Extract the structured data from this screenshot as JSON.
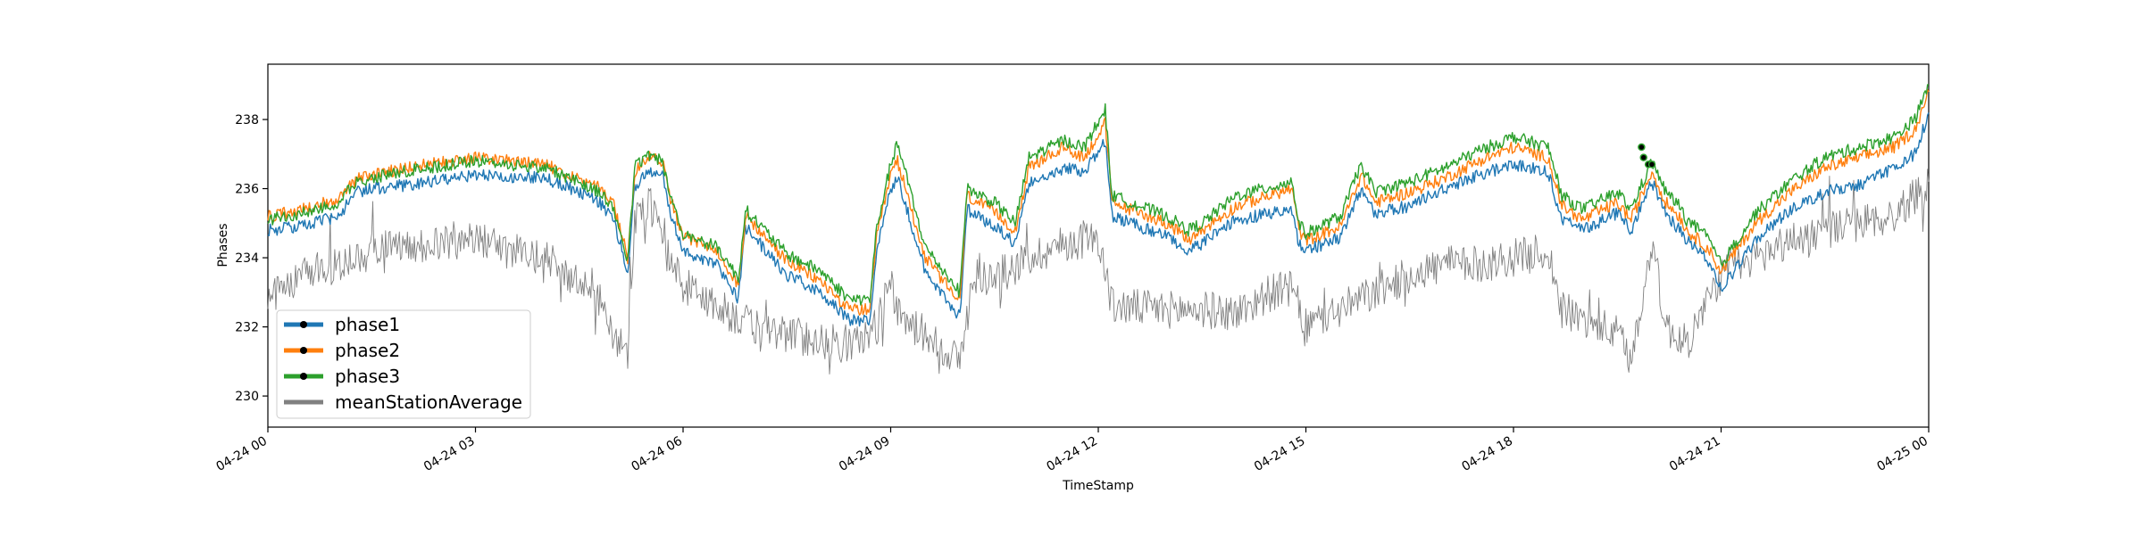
{
  "chart_data": {
    "type": "line",
    "title": "",
    "xlabel": "TimeStamp",
    "ylabel": "Phases",
    "xlim": [
      "04-24 00:00",
      "04-25 00:00"
    ],
    "ylim": [
      229.1,
      239.6
    ],
    "grid": false,
    "legend_position": "lower-left",
    "x_ticks": [
      {
        "hour": 0,
        "label": "04-24 00"
      },
      {
        "hour": 3,
        "label": "04-24 03"
      },
      {
        "hour": 6,
        "label": "04-24 06"
      },
      {
        "hour": 9,
        "label": "04-24 09"
      },
      {
        "hour": 12,
        "label": "04-24 12"
      },
      {
        "hour": 15,
        "label": "04-24 15"
      },
      {
        "hour": 18,
        "label": "04-24 18"
      },
      {
        "hour": 21,
        "label": "04-24 21"
      },
      {
        "hour": 24,
        "label": "04-25 00"
      }
    ],
    "y_ticks": [
      230,
      232,
      234,
      236,
      238
    ],
    "series": [
      {
        "name": "phase1",
        "color": "#1f77b4",
        "x": [
          0.0,
          0.5,
          1.0,
          1.3,
          1.5,
          2.0,
          3.0,
          4.0,
          4.5,
          4.8,
          5.0,
          5.2,
          5.3,
          5.5,
          5.7,
          5.8,
          6.0,
          6.5,
          6.8,
          6.9,
          7.5,
          8.0,
          8.4,
          8.7,
          8.8,
          9.0,
          9.1,
          9.5,
          10.0,
          10.1,
          10.5,
          10.8,
          11.0,
          11.5,
          11.8,
          12.1,
          12.2,
          13.0,
          13.3,
          13.5,
          14.0,
          14.8,
          14.9,
          15.0,
          15.5,
          15.8,
          16.0,
          16.5,
          17.0,
          17.5,
          18.0,
          18.5,
          18.7,
          19.0,
          19.5,
          19.7,
          20.0,
          20.2,
          20.4,
          20.5,
          20.8,
          21.0,
          21.5,
          22.0,
          22.5,
          23.0,
          23.5,
          23.8,
          24.0
        ],
        "values": [
          234.8,
          234.9,
          235.2,
          235.9,
          236.0,
          236.1,
          236.4,
          236.3,
          235.9,
          235.6,
          235.1,
          233.6,
          236.0,
          236.5,
          236.4,
          235.4,
          234.2,
          233.8,
          232.8,
          234.9,
          233.5,
          233.0,
          232.2,
          232.2,
          234.3,
          236.0,
          236.3,
          233.6,
          232.3,
          235.4,
          234.9,
          234.4,
          236.2,
          236.6,
          236.5,
          237.4,
          235.2,
          234.6,
          234.2,
          234.4,
          235.1,
          235.4,
          234.4,
          234.2,
          234.6,
          236.0,
          235.3,
          235.5,
          236.0,
          236.4,
          236.7,
          236.5,
          235.1,
          234.8,
          235.3,
          234.8,
          236.2,
          235.3,
          234.8,
          234.5,
          234.0,
          233.1,
          234.5,
          235.4,
          235.9,
          236.1,
          236.6,
          237.0,
          238.2
        ]
      },
      {
        "name": "phase2",
        "color": "#ff7f0e",
        "x": [
          0.0,
          0.5,
          1.0,
          1.3,
          1.5,
          2.0,
          3.0,
          4.0,
          4.5,
          4.8,
          5.0,
          5.2,
          5.3,
          5.5,
          5.7,
          5.8,
          6.0,
          6.5,
          6.8,
          6.9,
          7.5,
          8.0,
          8.4,
          8.7,
          8.8,
          9.0,
          9.1,
          9.5,
          10.0,
          10.1,
          10.5,
          10.8,
          11.0,
          11.5,
          11.8,
          12.1,
          12.2,
          13.0,
          13.3,
          13.5,
          14.0,
          14.8,
          14.9,
          15.0,
          15.5,
          15.8,
          16.0,
          16.5,
          17.0,
          17.5,
          18.0,
          18.5,
          18.7,
          19.0,
          19.5,
          19.7,
          20.0,
          20.2,
          20.4,
          20.5,
          20.8,
          21.0,
          21.5,
          22.0,
          22.5,
          23.0,
          23.5,
          23.8,
          24.0
        ],
        "values": [
          235.2,
          235.4,
          235.7,
          236.3,
          236.4,
          236.6,
          236.9,
          236.7,
          236.3,
          236.0,
          235.5,
          234.0,
          236.5,
          236.9,
          236.8,
          235.8,
          234.6,
          234.2,
          233.2,
          235.2,
          233.9,
          233.3,
          232.5,
          232.5,
          234.6,
          236.4,
          236.8,
          234.0,
          232.7,
          235.8,
          235.3,
          234.8,
          236.6,
          237.2,
          236.9,
          237.9,
          235.6,
          235.0,
          234.5,
          234.8,
          235.5,
          236.0,
          234.8,
          234.5,
          234.9,
          236.4,
          235.6,
          235.9,
          236.3,
          236.8,
          237.2,
          236.9,
          235.5,
          235.1,
          235.6,
          235.1,
          236.5,
          235.6,
          235.2,
          234.8,
          234.3,
          233.6,
          235.0,
          235.9,
          236.6,
          236.9,
          237.2,
          237.7,
          238.8
        ]
      },
      {
        "name": "phase3",
        "color": "#2ca02c",
        "x": [
          0.0,
          0.5,
          1.0,
          1.3,
          1.5,
          2.0,
          3.0,
          4.0,
          4.5,
          4.8,
          5.0,
          5.2,
          5.3,
          5.5,
          5.7,
          5.8,
          6.0,
          6.5,
          6.8,
          6.9,
          7.5,
          8.0,
          8.4,
          8.7,
          8.8,
          9.0,
          9.1,
          9.5,
          10.0,
          10.1,
          10.5,
          10.8,
          11.0,
          11.5,
          11.8,
          12.1,
          12.2,
          13.0,
          13.3,
          13.5,
          14.0,
          14.8,
          14.9,
          15.0,
          15.5,
          15.8,
          16.0,
          16.5,
          17.0,
          17.5,
          18.0,
          18.5,
          18.7,
          19.0,
          19.5,
          19.7,
          20.0,
          20.2,
          20.4,
          20.5,
          20.8,
          21.0,
          21.5,
          22.0,
          22.5,
          23.0,
          23.5,
          23.8,
          24.0
        ],
        "values": [
          235.1,
          235.3,
          235.6,
          236.2,
          236.3,
          236.5,
          236.8,
          236.6,
          236.2,
          235.9,
          235.4,
          233.9,
          236.6,
          237.0,
          236.8,
          235.9,
          234.7,
          234.3,
          233.4,
          235.4,
          234.1,
          233.6,
          232.8,
          232.8,
          234.9,
          236.7,
          237.3,
          234.3,
          233.0,
          236.0,
          235.6,
          235.0,
          236.9,
          237.4,
          237.2,
          238.3,
          235.8,
          235.2,
          234.8,
          235.0,
          235.8,
          236.2,
          235.0,
          234.7,
          235.2,
          236.7,
          235.9,
          236.2,
          236.6,
          237.1,
          237.5,
          237.2,
          235.8,
          235.4,
          235.9,
          235.4,
          236.8,
          235.9,
          235.5,
          235.1,
          234.6,
          233.8,
          235.3,
          236.2,
          236.9,
          237.2,
          237.5,
          238.0,
          239.0
        ]
      },
      {
        "name": "meanStationAverage",
        "color": "#808080",
        "x": [
          0.0,
          0.5,
          1.0,
          1.5,
          2.0,
          2.5,
          3.0,
          3.5,
          4.0,
          4.5,
          4.8,
          5.0,
          5.2,
          5.3,
          5.5,
          5.7,
          5.8,
          6.0,
          6.5,
          7.0,
          7.5,
          8.0,
          8.5,
          8.8,
          9.0,
          9.1,
          9.5,
          10.0,
          10.2,
          10.5,
          11.0,
          11.5,
          12.0,
          12.2,
          13.0,
          13.5,
          14.0,
          14.5,
          14.8,
          15.0,
          15.5,
          16.0,
          16.5,
          17.0,
          17.5,
          18.0,
          18.5,
          18.7,
          19.0,
          19.5,
          19.7,
          20.0,
          20.2,
          20.5,
          21.0,
          21.5,
          22.0,
          22.5,
          23.0,
          23.5,
          24.0
        ],
        "values": [
          232.8,
          233.5,
          233.8,
          234.2,
          234.3,
          234.5,
          234.5,
          234.2,
          234.0,
          233.3,
          232.8,
          231.5,
          231.3,
          235.0,
          235.7,
          234.5,
          234.0,
          233.2,
          232.6,
          232.0,
          231.8,
          231.6,
          231.5,
          232.0,
          233.5,
          232.3,
          231.8,
          231.0,
          233.5,
          233.4,
          234.0,
          234.4,
          234.6,
          232.6,
          232.5,
          232.5,
          232.4,
          233.0,
          233.1,
          232.0,
          232.5,
          233.0,
          233.5,
          233.8,
          233.8,
          234.0,
          234.2,
          232.5,
          232.2,
          231.8,
          231.0,
          234.5,
          232.0,
          231.5,
          233.5,
          234.0,
          234.5,
          234.8,
          235.0,
          235.2,
          236.2
        ]
      }
    ],
    "markers": [
      {
        "hour": 19.85,
        "value": 237.2,
        "color": "#000000"
      },
      {
        "hour": 19.88,
        "value": 236.9,
        "color": "#000000"
      },
      {
        "hour": 19.95,
        "value": 236.7,
        "color": "#000000"
      },
      {
        "hour": 20.0,
        "value": 236.7,
        "color": "#000000"
      }
    ],
    "legend": [
      {
        "label": "phase1",
        "color": "#1f77b4"
      },
      {
        "label": "phase2",
        "color": "#ff7f0e"
      },
      {
        "label": "phase3",
        "color": "#2ca02c"
      },
      {
        "label": "meanStationAverage",
        "color": "#808080"
      }
    ]
  }
}
